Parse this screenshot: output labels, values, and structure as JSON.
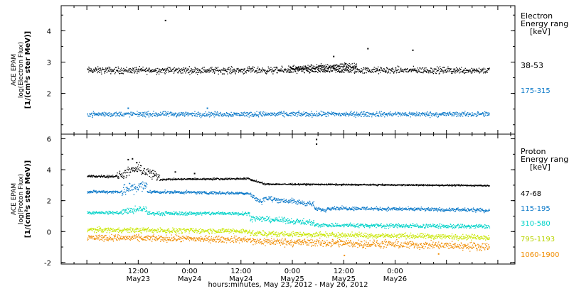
{
  "chart_data": [
    {
      "type": "scatter",
      "panel": "electron",
      "ylabel_lines": [
        "ACE EPAM",
        "log(Electron Flux)",
        "[1/(cm²s ster MeV)]"
      ],
      "ylim": [
        0.7,
        4.8
      ],
      "yticks": [
        2,
        3,
        4
      ],
      "legend_title_lines": [
        "Electron",
        "Energy ranges",
        "[keV]"
      ],
      "series": [
        {
          "name": "38-53",
          "color": "#000000",
          "segments": [
            {
              "t0": 0,
              "t1": 94,
              "v0": 2.75,
              "v1": 2.75,
              "noise": 0.09
            },
            {
              "t0": 47,
              "t1": 60,
              "v0": 2.8,
              "v1": 2.9,
              "noise": 0.08
            },
            {
              "t0": 60,
              "t1": 63,
              "v0": 2.92,
              "v1": 2.85,
              "noise": 0.08
            }
          ],
          "outliers": [
            [
              18.2,
              4.35
            ],
            [
              57.5,
              3.2
            ],
            [
              65.5,
              3.45
            ],
            [
              76.0,
              3.4
            ]
          ]
        },
        {
          "name": "175-315",
          "color": "#0a78c8",
          "segments": [
            {
              "t0": 0,
              "t1": 94,
              "v0": 1.35,
              "v1": 1.35,
              "noise": 0.07
            }
          ],
          "outliers": [
            [
              9.5,
              1.55
            ],
            [
              28,
              1.55
            ]
          ]
        }
      ]
    },
    {
      "type": "scatter",
      "panel": "proton",
      "ylabel_lines": [
        "ACE EPAM",
        "log(Proton Flux)",
        "[1/(cm²s ster MeV)]"
      ],
      "ylim": [
        -2.1,
        6.3
      ],
      "yticks": [
        -2,
        0,
        2,
        4,
        6
      ],
      "legend_title_lines": [
        "Proton",
        "Energy ranges",
        "[keV]"
      ],
      "series": [
        {
          "name": "47-68",
          "color": "#000000",
          "segments": [
            {
              "t0": 0,
              "t1": 7,
              "v0": 3.6,
              "v1": 3.6,
              "noise": 0.07
            },
            {
              "t0": 7,
              "t1": 12,
              "v0": 3.6,
              "v1": 4.1,
              "noise": 0.25
            },
            {
              "t0": 12,
              "t1": 17,
              "v0": 4.1,
              "v1": 3.5,
              "noise": 0.3
            },
            {
              "t0": 17,
              "t1": 38,
              "v0": 3.4,
              "v1": 3.45,
              "noise": 0.05
            },
            {
              "t0": 38,
              "t1": 41,
              "v0": 3.4,
              "v1": 3.15,
              "noise": 0.05
            },
            {
              "t0": 41,
              "t1": 94,
              "v0": 3.1,
              "v1": 3.0,
              "noise": 0.04
            }
          ],
          "outliers": [
            [
              9.5,
              4.7
            ],
            [
              10.5,
              4.75
            ],
            [
              11.5,
              4.5
            ],
            [
              20.5,
              3.9
            ],
            [
              25,
              3.8
            ],
            [
              53.5,
              6.0
            ],
            [
              53.5,
              5.7
            ]
          ]
        },
        {
          "name": "115-195",
          "color": "#0a78c8",
          "segments": [
            {
              "t0": 0,
              "t1": 8,
              "v0": 2.6,
              "v1": 2.6,
              "noise": 0.08
            },
            {
              "t0": 8,
              "t1": 14,
              "v0": 2.7,
              "v1": 3.0,
              "noise": 0.35
            },
            {
              "t0": 14,
              "t1": 38,
              "v0": 2.6,
              "v1": 2.5,
              "noise": 0.08
            },
            {
              "t0": 38,
              "t1": 41,
              "v0": 2.4,
              "v1": 1.9,
              "noise": 0.12
            },
            {
              "t0": 41,
              "t1": 53,
              "v0": 2.2,
              "v1": 1.8,
              "noise": 0.15
            },
            {
              "t0": 53,
              "t1": 56,
              "v0": 1.5,
              "v1": 1.4,
              "noise": 0.1
            },
            {
              "t0": 56,
              "t1": 94,
              "v0": 1.55,
              "v1": 1.4,
              "noise": 0.1
            }
          ],
          "outliers": []
        },
        {
          "name": "310-580",
          "color": "#00d2c8",
          "segments": [
            {
              "t0": 0,
              "t1": 8,
              "v0": 1.25,
              "v1": 1.25,
              "noise": 0.08
            },
            {
              "t0": 8,
              "t1": 14,
              "v0": 1.3,
              "v1": 1.5,
              "noise": 0.2
            },
            {
              "t0": 14,
              "t1": 38,
              "v0": 1.2,
              "v1": 1.2,
              "noise": 0.1
            },
            {
              "t0": 38,
              "t1": 53,
              "v0": 0.9,
              "v1": 0.6,
              "noise": 0.15
            },
            {
              "t0": 53,
              "t1": 94,
              "v0": 0.45,
              "v1": 0.35,
              "noise": 0.12
            }
          ],
          "outliers": []
        },
        {
          "name": "795-1193",
          "color": "#c8e600",
          "segments": [
            {
              "t0": 0,
              "t1": 38,
              "v0": 0.15,
              "v1": 0.05,
              "noise": 0.14
            },
            {
              "t0": 38,
              "t1": 94,
              "v0": -0.1,
              "v1": -0.35,
              "noise": 0.15
            }
          ],
          "outliers": []
        },
        {
          "name": "1060-1900",
          "color": "#f08c00",
          "segments": [
            {
              "t0": 0,
              "t1": 38,
              "v0": -0.35,
              "v1": -0.5,
              "noise": 0.18
            },
            {
              "t0": 38,
              "t1": 94,
              "v0": -0.6,
              "v1": -0.95,
              "noise": 0.22
            }
          ],
          "outliers": [
            [
              60,
              -1.5
            ],
            [
              82,
              -1.4
            ]
          ]
        }
      ]
    }
  ],
  "x_axis": {
    "hours_range": [
      -6,
      100
    ],
    "ticks": [
      {
        "h": 12,
        "time": "12:00",
        "day": "May23"
      },
      {
        "h": 24,
        "time": "0:00",
        "day": "May24"
      },
      {
        "h": 36,
        "time": "12:00",
        "day": "May24"
      },
      {
        "h": 48,
        "time": "0:00",
        "day": "May25"
      },
      {
        "h": 60,
        "time": "12:00",
        "day": "May25"
      },
      {
        "h": 72,
        "time": "0:00",
        "day": "May26"
      }
    ],
    "minor_tick_hours": 3,
    "label": "hours:minutes, May 23, 2012 - May 26, 2012"
  }
}
